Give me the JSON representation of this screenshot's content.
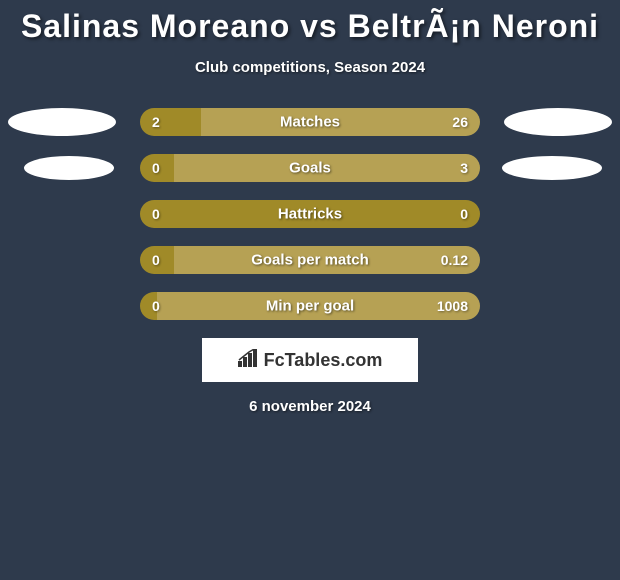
{
  "title": "Salinas Moreano vs BeltrÃ¡n Neroni",
  "subtitle": "Club competitions, Season 2024",
  "colors": {
    "background": "#2e3a4c",
    "bar_left": "#a08a28",
    "bar_right": "#b6a154",
    "ellipse": "#ffffff",
    "text": "#ffffff"
  },
  "stats": [
    {
      "label": "Matches",
      "left_value": "2",
      "right_value": "26",
      "left_pct": 18,
      "show_left_ellipse": true,
      "show_right_ellipse": true
    },
    {
      "label": "Goals",
      "left_value": "0",
      "right_value": "3",
      "left_pct": 10,
      "show_left_ellipse": true,
      "show_right_ellipse": true
    },
    {
      "label": "Hattricks",
      "left_value": "0",
      "right_value": "0",
      "left_pct": 100,
      "show_left_ellipse": false,
      "show_right_ellipse": false
    },
    {
      "label": "Goals per match",
      "left_value": "0",
      "right_value": "0.12",
      "left_pct": 10,
      "show_left_ellipse": false,
      "show_right_ellipse": false
    },
    {
      "label": "Min per goal",
      "left_value": "0",
      "right_value": "1008",
      "left_pct": 5,
      "show_left_ellipse": false,
      "show_right_ellipse": false
    }
  ],
  "footer": {
    "logo_text": "FcTables.com",
    "date": "6 november 2024"
  }
}
